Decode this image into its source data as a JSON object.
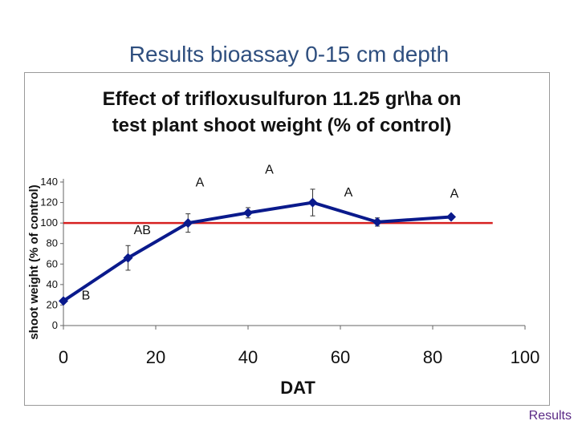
{
  "slide": {
    "title": "Results bioassay 0-15 cm depth",
    "footer": "Results"
  },
  "chart_data": {
    "type": "line",
    "title": [
      "Effect of trifloxusulfuron 11.25 gr\\ha on",
      "test plant shoot weight (% of control)"
    ],
    "xlabel": "DAT",
    "ylabel": "shoot weight (% of control)",
    "xlim": [
      0,
      100
    ],
    "ylim": [
      0,
      140
    ],
    "xticks": [
      0,
      20,
      40,
      60,
      80,
      100
    ],
    "yticks": [
      0,
      20,
      40,
      60,
      80,
      100,
      120,
      140
    ],
    "series": [
      {
        "color": "#0a1a8c",
        "points": [
          {
            "x": 0,
            "y": 24,
            "err": 0,
            "letter": "B"
          },
          {
            "x": 14,
            "y": 66,
            "err": 12,
            "letter": ""
          },
          {
            "x": 27,
            "y": 100,
            "err": 9,
            "letter": "AB"
          },
          {
            "x": 40,
            "y": 110,
            "err": 5,
            "letter": "A"
          },
          {
            "x": 54,
            "y": 120,
            "err": 13,
            "letter": "A"
          },
          {
            "x": 68,
            "y": 101,
            "err": 4,
            "letter": "A"
          },
          {
            "x": 84,
            "y": 106,
            "err": 0,
            "letter": "A"
          }
        ]
      }
    ],
    "reference_line": {
      "y": 100,
      "color": "#d62020"
    },
    "grid": false,
    "legend": "none"
  }
}
